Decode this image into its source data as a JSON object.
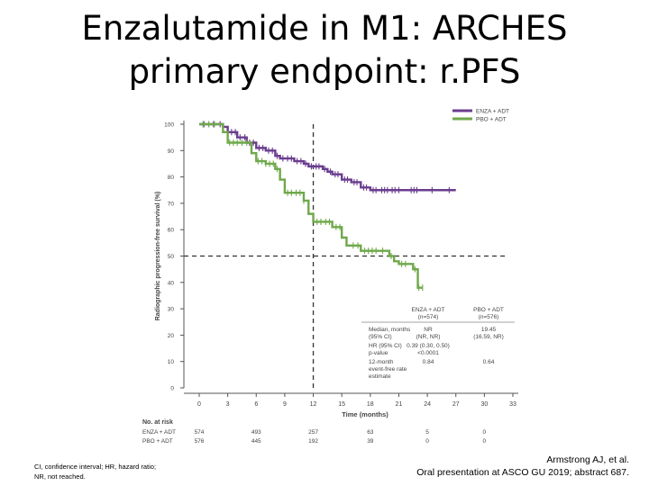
{
  "slide": {
    "title_line1": "Enzalutamide in M1: ARCHES",
    "title_line2": "primary endpoint: r.PFS",
    "footnote_left_line1": "CI, confidence interval; HR, hazard ratio;",
    "footnote_left_line2": "NR, not reached.",
    "citation_line1": "Armstrong AJ, et al.",
    "citation_line2": "Oral presentation at ASCO GU 2019; abstract 687."
  },
  "colors": {
    "enza": "#6a3d8f",
    "pbo": "#6fa84a",
    "axis": "#555555",
    "text": "#444444"
  },
  "chart_data": {
    "type": "line",
    "ylabel": "Radiographic progression-free survival (%)",
    "xlabel": "Time (months)",
    "xlim": [
      0,
      33
    ],
    "ylim": [
      0,
      100
    ],
    "xticks": [
      0,
      3,
      6,
      9,
      12,
      15,
      18,
      21,
      24,
      27,
      30,
      33
    ],
    "yticks": [
      0,
      10,
      20,
      30,
      40,
      50,
      60,
      70,
      80,
      90,
      100
    ],
    "reference_lines": {
      "x": 12,
      "y": 50
    },
    "series": [
      {
        "name": "ENZA + ADT",
        "color_key": "enza",
        "points": [
          [
            0,
            100
          ],
          [
            2,
            100
          ],
          [
            2.5,
            99
          ],
          [
            3,
            97
          ],
          [
            4,
            95
          ],
          [
            5,
            93
          ],
          [
            6,
            91
          ],
          [
            7,
            90
          ],
          [
            8,
            88
          ],
          [
            8.5,
            87
          ],
          [
            10,
            86
          ],
          [
            11,
            85
          ],
          [
            11.5,
            84
          ],
          [
            13,
            83
          ],
          [
            13.5,
            82
          ],
          [
            14,
            81
          ],
          [
            15,
            79
          ],
          [
            16,
            78
          ],
          [
            17,
            76
          ],
          [
            18,
            75
          ],
          [
            19,
            75
          ],
          [
            27,
            75
          ]
        ],
        "censor_x": [
          0.5,
          1,
          1.5,
          2.2,
          3.4,
          3.8,
          4.3,
          4.8,
          5.3,
          5.7,
          6.3,
          6.7,
          7.3,
          7.7,
          8.2,
          8.8,
          9.3,
          9.7,
          10.3,
          10.7,
          11.2,
          11.8,
          12.3,
          12.6,
          13.2,
          13.8,
          14.3,
          14.6,
          15.3,
          15.6,
          16.3,
          16.6,
          17.3,
          17.6,
          18.3,
          18.6,
          19.2,
          19.5,
          19.8,
          20.3,
          20.6,
          21,
          22.3,
          22.6,
          22.9,
          24.5,
          26.3
        ]
      },
      {
        "name": "PBO + ADT",
        "color_key": "pbo",
        "points": [
          [
            0,
            100
          ],
          [
            2,
            100
          ],
          [
            2.5,
            97
          ],
          [
            3,
            93
          ],
          [
            4,
            93
          ],
          [
            5,
            93
          ],
          [
            5.5,
            89
          ],
          [
            6,
            86
          ],
          [
            7,
            85
          ],
          [
            8,
            83
          ],
          [
            8.5,
            79
          ],
          [
            9,
            74
          ],
          [
            10,
            74
          ],
          [
            11,
            71
          ],
          [
            11.5,
            66
          ],
          [
            12,
            63
          ],
          [
            13,
            63
          ],
          [
            14,
            61
          ],
          [
            15,
            57
          ],
          [
            15.5,
            54
          ],
          [
            16,
            54
          ],
          [
            17,
            52
          ],
          [
            19,
            52
          ],
          [
            20,
            50
          ],
          [
            20.5,
            48
          ],
          [
            21,
            47
          ],
          [
            22,
            47
          ],
          [
            22.5,
            45
          ],
          [
            23,
            38
          ],
          [
            23.5,
            38
          ]
        ],
        "censor_x": [
          0.4,
          1,
          1.6,
          3.2,
          3.6,
          4,
          4.5,
          5,
          6.2,
          6.6,
          7,
          7.4,
          7.8,
          8.2,
          9.3,
          9.7,
          10.2,
          10.6,
          11,
          12.4,
          12.8,
          13.3,
          13.7,
          14.4,
          14.8,
          16.2,
          16.7,
          17.4,
          17.8,
          18.2,
          18.6,
          19.3,
          20.2,
          21.3,
          21.7,
          22.7,
          23.1,
          23.5
        ]
      }
    ],
    "stats_table": {
      "col_headers": [
        [
          "ENZA + ADT",
          "(n=574)"
        ],
        [
          "PBO + ADT",
          "(n=576)"
        ]
      ],
      "rows": [
        {
          "label": [
            "Median, months",
            "(95% CI)"
          ],
          "enza": [
            "NR",
            "(NR, NR)"
          ],
          "pbo": [
            "19.45",
            "(16.59, NR)"
          ]
        },
        {
          "label": [
            "HR (95% CI)",
            "p-value"
          ],
          "enza": [
            "0.39 (0.30, 0.50)",
            "<0.0001"
          ],
          "pbo": [
            "",
            ""
          ]
        },
        {
          "label": [
            "12-month",
            "event-free rate",
            "estimate"
          ],
          "enza": [
            "0.84"
          ],
          "pbo": [
            "0.64"
          ]
        }
      ]
    },
    "at_risk": {
      "title": "No. at risk",
      "times": [
        0,
        6,
        12,
        18,
        24,
        30
      ],
      "rows": [
        {
          "label": "ENZA + ADT",
          "values": [
            574,
            493,
            257,
            63,
            5,
            0
          ]
        },
        {
          "label": "PBO + ADT",
          "values": [
            576,
            445,
            192,
            39,
            0,
            0
          ]
        }
      ]
    }
  }
}
